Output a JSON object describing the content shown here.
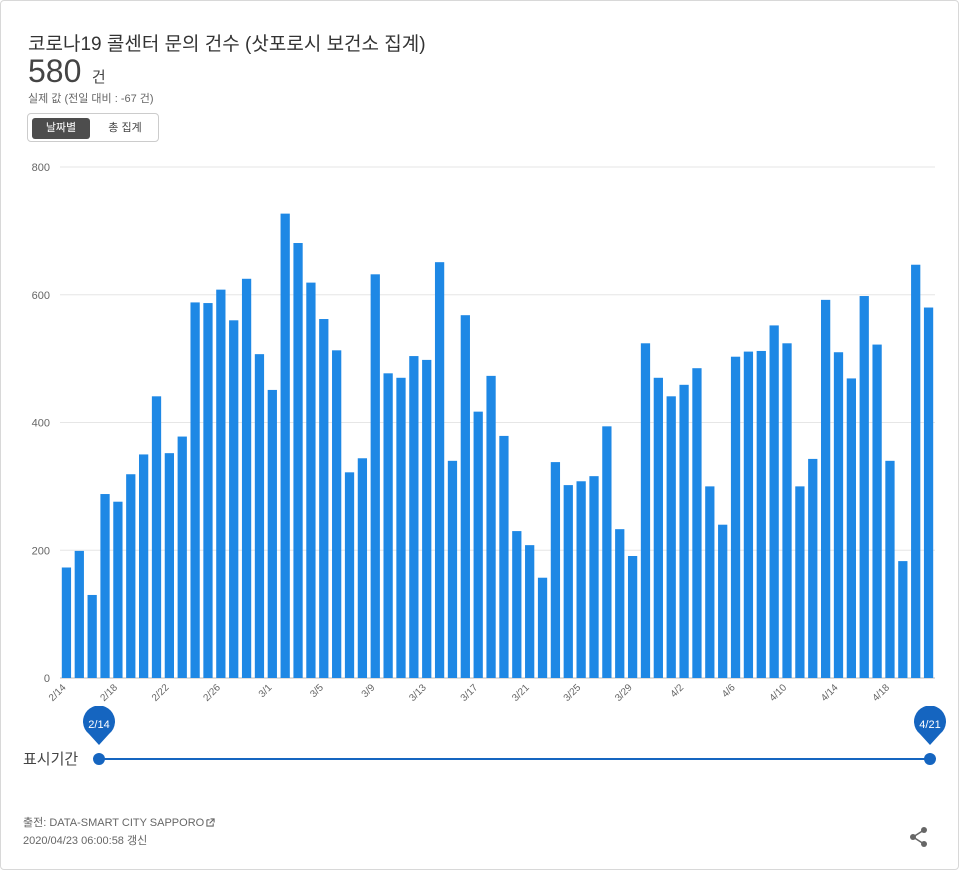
{
  "header": {
    "title": "코로나19 콜센터 문의 건수 (삿포로시 보건소 집계)",
    "value": "580",
    "unit": "건",
    "subtext": "실제 값 (전일 대비 : -67 건)"
  },
  "toggle": {
    "daily_label": "날짜별",
    "total_label": "총 집계",
    "selected": "daily"
  },
  "range": {
    "label": "표시기간",
    "start": "2/14",
    "end": "4/21",
    "accent": "#1565c0"
  },
  "footer": {
    "source_prefix": "출전: ",
    "source_name": "DATA-SMART CITY SAPPORO",
    "updated": "2020/04/23 06:00:58 갱신",
    "share_icon": "share-icon",
    "external_icon": "external-link-icon"
  },
  "chart_data": {
    "type": "bar",
    "bar_color": "#1e88e5",
    "ylim": [
      0,
      800
    ],
    "yticks": [
      0,
      200,
      400,
      600,
      800
    ],
    "grid": true,
    "xticks": [
      "2/14",
      "2/18",
      "2/22",
      "2/26",
      "3/1",
      "3/5",
      "3/9",
      "3/13",
      "3/17",
      "3/21",
      "3/25",
      "3/29",
      "4/2",
      "4/6",
      "4/10",
      "4/14",
      "4/18"
    ],
    "categories": [
      "2/14",
      "2/15",
      "2/16",
      "2/17",
      "2/18",
      "2/19",
      "2/20",
      "2/21",
      "2/22",
      "2/23",
      "2/24",
      "2/25",
      "2/26",
      "2/27",
      "2/28",
      "2/29",
      "3/1",
      "3/2",
      "3/3",
      "3/4",
      "3/5",
      "3/6",
      "3/7",
      "3/8",
      "3/9",
      "3/10",
      "3/11",
      "3/12",
      "3/13",
      "3/14",
      "3/15",
      "3/16",
      "3/17",
      "3/18",
      "3/19",
      "3/20",
      "3/21",
      "3/22",
      "3/23",
      "3/24",
      "3/25",
      "3/26",
      "3/27",
      "3/28",
      "3/29",
      "3/30",
      "3/31",
      "4/1",
      "4/2",
      "4/3",
      "4/4",
      "4/5",
      "4/6",
      "4/7",
      "4/8",
      "4/9",
      "4/10",
      "4/11",
      "4/12",
      "4/13",
      "4/14",
      "4/15",
      "4/16",
      "4/17",
      "4/18",
      "4/19",
      "4/20",
      "4/21"
    ],
    "values": [
      173,
      199,
      130,
      288,
      276,
      319,
      350,
      441,
      352,
      378,
      588,
      587,
      608,
      560,
      625,
      507,
      451,
      727,
      681,
      619,
      562,
      513,
      322,
      344,
      632,
      477,
      470,
      504,
      498,
      651,
      340,
      568,
      417,
      473,
      379,
      230,
      208,
      157,
      338,
      302,
      308,
      316,
      394,
      233,
      191,
      524,
      470,
      441,
      459,
      485,
      300,
      240,
      503,
      511,
      512,
      552,
      524,
      300,
      343,
      592,
      510,
      469,
      598,
      522,
      340,
      183,
      647,
      580
    ]
  }
}
